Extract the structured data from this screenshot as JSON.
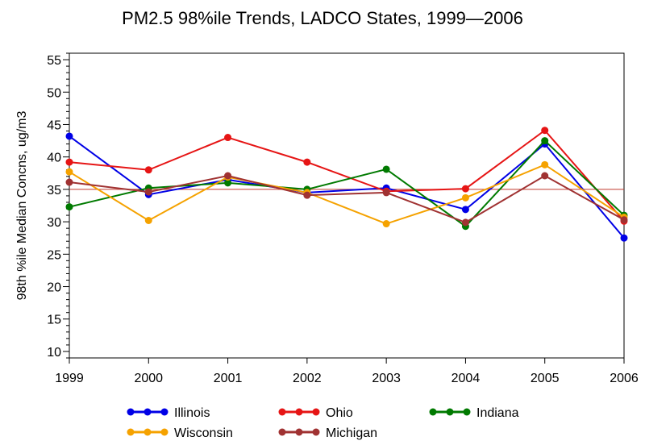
{
  "chart_data": {
    "type": "line",
    "title": "PM2.5 98%ile Trends, LADCO States, 1999—2006",
    "xlabel": "",
    "ylabel": "98th %ile Median Concns, ug/m3",
    "x": [
      "1999",
      "2000",
      "2001",
      "2002",
      "2003",
      "2004",
      "2005",
      "2006"
    ],
    "xlim": [
      1999,
      2006
    ],
    "ylim": [
      9,
      56
    ],
    "yticks": [
      "10",
      "15",
      "20",
      "25",
      "30",
      "35",
      "40",
      "45",
      "50",
      "55"
    ],
    "reference_line": 35,
    "grid": false,
    "legend_position": "bottom",
    "series": [
      {
        "name": "Illinois",
        "color": "#0000e6",
        "values": [
          43.2,
          34.2,
          36.5,
          34.5,
          35.2,
          31.9,
          42.0,
          27.5
        ]
      },
      {
        "name": "Ohio",
        "color": "#e61515",
        "values": [
          39.2,
          38.0,
          43.0,
          39.2,
          34.7,
          35.1,
          44.1,
          30.1
        ]
      },
      {
        "name": "Indiana",
        "color": "#007a00",
        "values": [
          32.3,
          35.2,
          36.0,
          35.0,
          38.1,
          29.3,
          42.5,
          31.0
        ]
      },
      {
        "name": "Wisconsin",
        "color": "#f5a200",
        "values": [
          37.7,
          30.2,
          36.9,
          34.5,
          29.7,
          33.7,
          38.8,
          30.7
        ]
      },
      {
        "name": "Michigan",
        "color": "#a03232",
        "values": [
          36.1,
          34.6,
          37.1,
          34.1,
          34.5,
          29.9,
          37.1,
          30.3
        ]
      }
    ]
  }
}
